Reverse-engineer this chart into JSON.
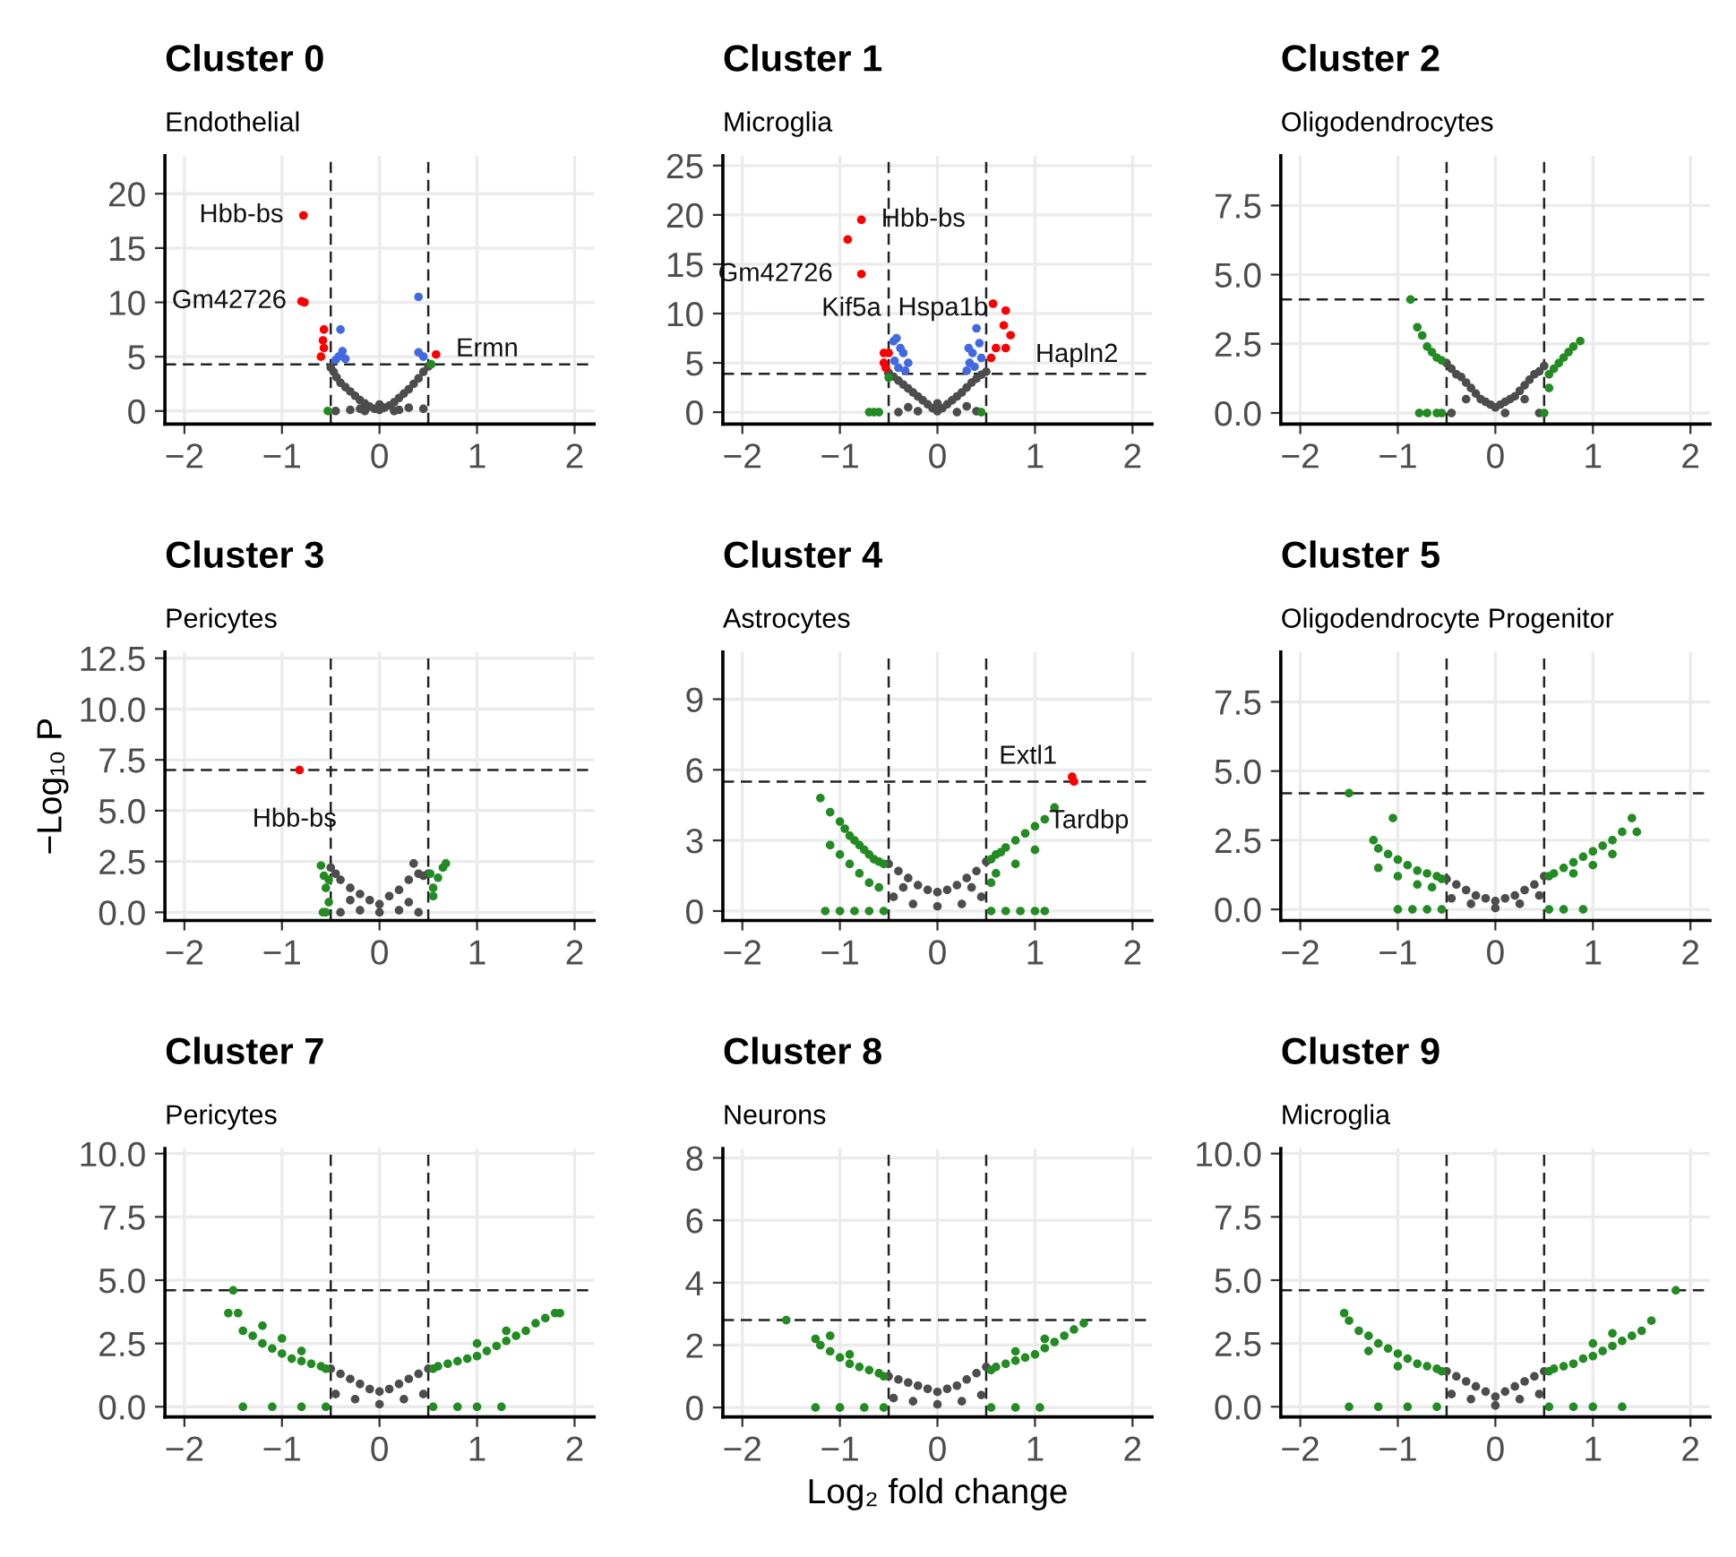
{
  "chart_data": [
    {
      "type": "scatter",
      "title": "Cluster 0",
      "subtitle": "Endothelial",
      "xlim": [
        -2.2,
        2.2
      ],
      "xticks": [
        -2,
        -1,
        0,
        1,
        2
      ],
      "ylim": [
        -1.2,
        23.5
      ],
      "yticks": [
        0,
        5,
        10,
        15,
        20
      ],
      "grid": true,
      "marker": "circle",
      "ref_lines": [
        {
          "axis": "x",
          "value": -0.5,
          "line_style": "dashed"
        },
        {
          "axis": "x",
          "value": 0.5,
          "line_style": "dashed"
        },
        {
          "axis": "y",
          "value": 4.3,
          "line_style": "dashed"
        }
      ],
      "annotations": [
        {
          "text": "Hbb-bs",
          "x": -0.78,
          "y": 18
        },
        {
          "text": "Gm42726",
          "x": -0.8,
          "y": 10.1
        },
        {
          "text": "Ermn",
          "x": 0.58,
          "y": 5.2
        }
      ],
      "series": [
        {
          "color": "#4d4d4d",
          "x": [
            -0.5,
            -0.47,
            -0.44,
            -0.4,
            -0.35,
            -0.3,
            -0.25,
            -0.2,
            -0.15,
            -0.1,
            -0.05,
            0,
            0.05,
            0.1,
            0.15,
            0.2,
            0.25,
            0.3,
            0.35,
            0.4,
            0.45,
            0.5,
            -0.45,
            -0.3,
            -0.15,
            0,
            0.15,
            0.3,
            0.45,
            -0.2,
            0.2
          ],
          "values": [
            4,
            3.6,
            3.1,
            2.6,
            2.2,
            1.8,
            1.4,
            1.0,
            0.7,
            0.4,
            0.2,
            0.1,
            0.3,
            0.5,
            0.8,
            1.2,
            1.6,
            2.0,
            2.5,
            3.0,
            3.6,
            4.1,
            0,
            0.1,
            0,
            0.6,
            0,
            0.3,
            0.2,
            0.2,
            0.1
          ]
        },
        {
          "color": "#228b22",
          "x": [
            -0.53,
            0.53
          ],
          "values": [
            0,
            4.3
          ]
        },
        {
          "color": "#4169e1",
          "x": [
            -0.4,
            -0.38,
            -0.35,
            -0.45,
            -0.42,
            0.4,
            0.4,
            0.45
          ],
          "values": [
            7.5,
            5.5,
            4.8,
            4.7,
            5.0,
            10.5,
            5.4,
            5.0
          ]
        },
        {
          "color": "#ff0000",
          "x": [
            -0.78,
            -0.8,
            -0.77,
            -0.57,
            -0.58,
            -0.57,
            -0.6,
            0.58
          ],
          "values": [
            18,
            10.1,
            10,
            7.5,
            6.5,
            5.8,
            5,
            5.2
          ]
        }
      ]
    },
    {
      "type": "scatter",
      "title": "Cluster 1",
      "subtitle": "Microglia",
      "xlim": [
        -2.2,
        2.2
      ],
      "xticks": [
        -2,
        -1,
        0,
        1,
        2
      ],
      "ylim": [
        -1.2,
        26
      ],
      "yticks": [
        0,
        5,
        10,
        15,
        20,
        25
      ],
      "grid": true,
      "marker": "circle",
      "ref_lines": [
        {
          "axis": "x",
          "value": -0.5,
          "line_style": "dashed"
        },
        {
          "axis": "x",
          "value": 0.5,
          "line_style": "dashed"
        },
        {
          "axis": "y",
          "value": 3.9,
          "line_style": "dashed"
        }
      ],
      "annotations": [
        {
          "text": "Hbb-bs",
          "x": -0.78,
          "y": 19.5
        },
        {
          "text": "Gm42726",
          "x": -0.92,
          "y": 17.5
        },
        {
          "text": "Kif5a",
          "x": -0.78,
          "y": 14
        },
        {
          "text": "Hspa1b",
          "x": 0.57,
          "y": 11
        },
        {
          "text": "Hapln2",
          "x": 0.75,
          "y": 7.8
        }
      ],
      "series": [
        {
          "color": "#4d4d4d",
          "x": [
            -0.5,
            -0.45,
            -0.4,
            -0.35,
            -0.3,
            -0.25,
            -0.2,
            -0.15,
            -0.1,
            -0.05,
            0,
            0.05,
            0.1,
            0.15,
            0.2,
            0.25,
            0.3,
            0.35,
            0.4,
            0.45,
            0.5,
            -0.4,
            -0.2,
            0,
            0.2,
            0.4,
            -0.3,
            0.3
          ],
          "values": [
            4,
            3.6,
            3.2,
            2.8,
            2.4,
            2,
            1.6,
            1.2,
            0.8,
            0.4,
            0.1,
            0.4,
            0.8,
            1.2,
            1.6,
            2,
            2.5,
            3,
            3.4,
            3.8,
            4.1,
            0,
            0.1,
            0.9,
            0,
            0.1,
            0.5,
            0.6
          ]
        },
        {
          "color": "#228b22",
          "x": [
            -0.65,
            -0.7,
            -0.6,
            -0.5,
            0.45
          ],
          "values": [
            0,
            0,
            0,
            3.5,
            0
          ]
        },
        {
          "color": "#4169e1",
          "x": [
            -0.45,
            -0.42,
            -0.38,
            -0.35,
            -0.3,
            -0.44,
            -0.4,
            -0.33,
            0.3,
            0.33,
            0.36,
            0.4,
            0.43,
            0.45,
            0.38,
            0.32
          ],
          "values": [
            7.2,
            7.5,
            6.5,
            6,
            5,
            5.2,
            4.5,
            4.2,
            4.2,
            5,
            6,
            8.5,
            7,
            5.5,
            4.6,
            6.5
          ]
        },
        {
          "color": "#ff0000",
          "x": [
            -0.78,
            -0.92,
            -0.78,
            -0.55,
            -0.5,
            -0.55,
            -0.53,
            0.57,
            0.7,
            0.68,
            0.75,
            0.6,
            0.7,
            0.55
          ],
          "values": [
            19.5,
            17.5,
            14,
            6,
            6,
            5,
            4.5,
            11,
            10.3,
            8.8,
            7.8,
            6.5,
            6.5,
            5.5
          ]
        }
      ]
    },
    {
      "type": "scatter",
      "title": "Cluster 2",
      "subtitle": "Oligodendrocytes",
      "xlim": [
        -2.2,
        2.2
      ],
      "xticks": [
        -2,
        -1,
        0,
        1,
        2
      ],
      "ylim": [
        -0.4,
        9.3
      ],
      "yticks": [
        {
          "value": 0,
          "label": "0.0"
        },
        2.5,
        {
          "value": 5,
          "label": "5.0"
        },
        7.5
      ],
      "grid": true,
      "marker": "circle",
      "ref_lines": [
        {
          "axis": "x",
          "value": -0.5,
          "line_style": "dashed"
        },
        {
          "axis": "x",
          "value": 0.5,
          "line_style": "dashed"
        },
        {
          "axis": "y",
          "value": 4.1,
          "line_style": "dashed"
        }
      ],
      "series": [
        {
          "color": "#4d4d4d",
          "x": [
            -0.5,
            -0.45,
            -0.4,
            -0.35,
            -0.3,
            -0.25,
            -0.2,
            -0.15,
            -0.1,
            -0.05,
            0,
            0.05,
            0.1,
            0.15,
            0.2,
            0.25,
            0.3,
            0.35,
            0.4,
            0.45,
            0.5,
            -0.45,
            0.45,
            0.1,
            -0.3,
            0.3
          ],
          "values": [
            1.8,
            1.6,
            1.4,
            1.3,
            1.1,
            0.9,
            0.7,
            0.5,
            0.4,
            0.3,
            0.2,
            0.3,
            0.4,
            0.5,
            0.6,
            0.8,
            1.0,
            1.2,
            1.4,
            1.5,
            1.7,
            0,
            0,
            0,
            0.5,
            0.5
          ]
        },
        {
          "color": "#228b22",
          "x": [
            -0.87,
            -0.8,
            -0.75,
            -0.7,
            -0.65,
            -0.6,
            -0.55,
            -0.78,
            -0.7,
            -0.6,
            -0.55,
            0.55,
            0.6,
            0.65,
            0.7,
            0.75,
            0.8,
            0.87,
            0.5,
            0.55
          ],
          "values": [
            4.1,
            3.1,
            2.8,
            2.4,
            2.2,
            2.0,
            1.9,
            0,
            0,
            0,
            0,
            1.4,
            1.6,
            1.8,
            2.0,
            2.2,
            2.4,
            2.6,
            0,
            0.9
          ]
        }
      ]
    },
    {
      "type": "scatter",
      "title": "Cluster 3",
      "subtitle": "Pericytes",
      "ylabel": "−Log₁₀ P",
      "xlim": [
        -2.2,
        2.2
      ],
      "xticks": [
        -2,
        -1,
        0,
        1,
        2
      ],
      "ylim": [
        -0.4,
        12.8
      ],
      "yticks": [
        {
          "value": 0,
          "label": "0.0"
        },
        2.5,
        {
          "value": 5,
          "label": "5.0"
        },
        7.5,
        {
          "value": 10,
          "label": "10.0"
        },
        12.5
      ],
      "grid": true,
      "marker": "circle",
      "ref_lines": [
        {
          "axis": "x",
          "value": -0.5,
          "line_style": "dashed"
        },
        {
          "axis": "x",
          "value": 0.5,
          "line_style": "dashed"
        },
        {
          "axis": "y",
          "value": 7.0,
          "line_style": "dashed"
        }
      ],
      "annotations": [
        {
          "text": "Hbb-bs",
          "x": -0.82,
          "y": 7.0
        }
      ],
      "series": [
        {
          "color": "#4d4d4d",
          "x": [
            -0.5,
            -0.45,
            -0.4,
            -0.3,
            -0.2,
            -0.1,
            0,
            0.1,
            0.2,
            0.3,
            0.35,
            0.4,
            0.45,
            0.5,
            -0.4,
            -0.2,
            0,
            0.2,
            0.4,
            -0.3,
            0.3
          ],
          "values": [
            2.2,
            1.9,
            1.6,
            1.2,
            0.9,
            0.6,
            0.4,
            0.8,
            1.1,
            1.6,
            2.4,
            1.9,
            1.8,
            1.9,
            0,
            0.1,
            0,
            0.1,
            0,
            0.6,
            0.5
          ]
        },
        {
          "color": "#228b22",
          "x": [
            -0.6,
            -0.57,
            -0.55,
            -0.52,
            -0.58,
            -0.55,
            -0.52,
            0.52,
            0.55,
            0.6,
            0.65,
            0.68,
            0.55
          ],
          "values": [
            2.3,
            1.8,
            1.2,
            0.5,
            0,
            0,
            1.6,
            1.9,
            0.8,
            1.7,
            2.2,
            2.4,
            1.2
          ]
        },
        {
          "color": "#ff0000",
          "x": [
            -0.82
          ],
          "values": [
            7.0
          ]
        }
      ]
    },
    {
      "type": "scatter",
      "title": "Cluster 4",
      "subtitle": "Astrocytes",
      "xlim": [
        -2.2,
        2.2
      ],
      "xticks": [
        -2,
        -1,
        0,
        1,
        2
      ],
      "ylim": [
        -0.4,
        11
      ],
      "yticks": [
        0,
        3,
        6,
        9
      ],
      "grid": true,
      "marker": "circle",
      "ref_lines": [
        {
          "axis": "x",
          "value": -0.5,
          "line_style": "dashed"
        },
        {
          "axis": "x",
          "value": 0.5,
          "line_style": "dashed"
        },
        {
          "axis": "y",
          "value": 5.5,
          "line_style": "dashed"
        }
      ],
      "annotations": [
        {
          "text": "Extl1",
          "x": 1.38,
          "y": 5.7
        },
        {
          "text": "Tardbp",
          "x": 1.4,
          "y": 5.5
        }
      ],
      "series": [
        {
          "color": "#4d4d4d",
          "x": [
            -0.5,
            -0.4,
            -0.3,
            -0.2,
            -0.1,
            0,
            0.1,
            0.2,
            0.3,
            0.4,
            0.5,
            -0.45,
            -0.25,
            0,
            0.25,
            0.45,
            -0.35,
            0.35
          ],
          "values": [
            2.0,
            1.7,
            1.4,
            1.1,
            0.9,
            0.8,
            0.9,
            1.1,
            1.4,
            1.7,
            2.1,
            0.6,
            0.3,
            0.2,
            0.3,
            0.6,
            1,
            1
          ]
        },
        {
          "color": "#228b22",
          "x": [
            -1.2,
            -1.1,
            -1.0,
            -0.95,
            -0.9,
            -0.85,
            -0.8,
            -0.75,
            -0.7,
            -0.65,
            -0.6,
            -0.55,
            -1.1,
            -1.0,
            -0.9,
            -0.8,
            -0.7,
            -0.6,
            -1.15,
            -1.0,
            -0.85,
            -0.7,
            -0.55,
            0.55,
            0.6,
            0.65,
            0.7,
            0.8,
            0.9,
            1.0,
            1.1,
            1.2,
            0.6,
            0.8,
            1.0,
            0.55,
            0.7,
            0.85,
            1.0,
            1.1,
            0.55
          ],
          "values": [
            4.8,
            4.2,
            3.8,
            3.5,
            3.2,
            3.0,
            2.8,
            2.6,
            2.4,
            2.2,
            2.1,
            2.0,
            2.8,
            2.4,
            2.0,
            1.6,
            1.2,
            1.0,
            0,
            0,
            0,
            0,
            0,
            2.2,
            2.4,
            2.5,
            2.7,
            3.0,
            3.3,
            3.6,
            3.9,
            4.4,
            1.6,
            2.0,
            2.6,
            0,
            0,
            0,
            0,
            0,
            1.2
          ]
        },
        {
          "color": "#ff0000",
          "x": [
            1.38,
            1.4
          ],
          "values": [
            5.7,
            5.5
          ]
        }
      ]
    },
    {
      "type": "scatter",
      "title": "Cluster 5",
      "subtitle": "Oligodendrocyte Progenitor",
      "xlim": [
        -2.2,
        2.2
      ],
      "xticks": [
        -2,
        -1,
        0,
        1,
        2
      ],
      "ylim": [
        -0.4,
        9.3
      ],
      "yticks": [
        {
          "value": 0,
          "label": "0.0"
        },
        2.5,
        {
          "value": 5,
          "label": "5.0"
        },
        7.5
      ],
      "grid": true,
      "marker": "circle",
      "ref_lines": [
        {
          "axis": "x",
          "value": -0.5,
          "line_style": "dashed"
        },
        {
          "axis": "x",
          "value": 0.5,
          "line_style": "dashed"
        },
        {
          "axis": "y",
          "value": 4.2,
          "line_style": "dashed"
        }
      ],
      "series": [
        {
          "color": "#4d4d4d",
          "x": [
            -0.5,
            -0.4,
            -0.3,
            -0.2,
            -0.1,
            0,
            0.1,
            0.2,
            0.3,
            0.4,
            0.5,
            -0.45,
            -0.25,
            0,
            0.25,
            0.45
          ],
          "values": [
            1.1,
            0.9,
            0.7,
            0.5,
            0.4,
            0.3,
            0.4,
            0.5,
            0.7,
            0.9,
            1.2,
            0.4,
            0.2,
            0.05,
            0.2,
            0.5
          ]
        },
        {
          "color": "#228b22",
          "x": [
            -1.5,
            -1.25,
            -1.2,
            -1.1,
            -1.05,
            -1.0,
            -0.9,
            -0.8,
            -0.7,
            -0.6,
            -0.55,
            -1.2,
            -1.0,
            -0.8,
            -0.65,
            -1.0,
            -0.85,
            -0.7,
            -0.55,
            0.55,
            0.6,
            0.7,
            0.8,
            0.9,
            1.0,
            1.1,
            1.2,
            1.3,
            1.4,
            1.45,
            0.8,
            1.0,
            1.2,
            0.55,
            0.7,
            0.9
          ],
          "values": [
            4.2,
            2.5,
            2.2,
            2.0,
            3.3,
            1.8,
            1.6,
            1.4,
            1.3,
            1.2,
            1.1,
            1.5,
            1.2,
            0.9,
            0.8,
            0,
            0,
            0,
            0,
            1.2,
            1.3,
            1.5,
            1.7,
            1.9,
            2.1,
            2.3,
            2.5,
            2.8,
            3.3,
            2.8,
            1.3,
            1.6,
            2.0,
            0,
            0,
            0
          ]
        }
      ]
    },
    {
      "type": "scatter",
      "title": "Cluster 7",
      "subtitle": "Pericytes",
      "xlim": [
        -2.2,
        2.2
      ],
      "xticks": [
        -2,
        -1,
        0,
        1,
        2
      ],
      "ylim": [
        -0.4,
        10.2
      ],
      "yticks": [
        {
          "value": 0,
          "label": "0.0"
        },
        2.5,
        {
          "value": 5,
          "label": "5.0"
        },
        7.5,
        {
          "value": 10,
          "label": "10.0"
        }
      ],
      "grid": true,
      "marker": "circle",
      "ref_lines": [
        {
          "axis": "x",
          "value": -0.5,
          "line_style": "dashed"
        },
        {
          "axis": "x",
          "value": 0.5,
          "line_style": "dashed"
        },
        {
          "axis": "y",
          "value": 4.6,
          "line_style": "dashed"
        }
      ],
      "series": [
        {
          "color": "#4d4d4d",
          "x": [
            -0.5,
            -0.4,
            -0.3,
            -0.2,
            -0.1,
            0,
            0.1,
            0.2,
            0.3,
            0.4,
            0.5,
            -0.45,
            -0.25,
            0,
            0.25,
            0.45
          ],
          "values": [
            1.5,
            1.3,
            1.1,
            0.9,
            0.7,
            0.6,
            0.7,
            0.9,
            1.1,
            1.3,
            1.5,
            0.5,
            0.3,
            0.1,
            0.3,
            0.5
          ],
          "name": null
        },
        {
          "color": "#228b22",
          "x": [
            -1.5,
            -1.55,
            -1.45,
            -1.4,
            -1.3,
            -1.2,
            -1.1,
            -1.0,
            -0.9,
            -0.8,
            -0.7,
            -0.6,
            -0.55,
            -1.2,
            -1.0,
            -0.8,
            -1.4,
            -1.1,
            -0.8,
            -0.55,
            0.55,
            0.6,
            0.7,
            0.8,
            0.9,
            1.0,
            1.1,
            1.2,
            1.3,
            1.4,
            1.5,
            1.6,
            1.7,
            1.8,
            1.85,
            1.0,
            1.3,
            0.55,
            0.8,
            1.0,
            1.25
          ],
          "values": [
            4.6,
            3.7,
            3.7,
            3.0,
            2.8,
            2.5,
            2.3,
            2.1,
            1.9,
            1.8,
            1.7,
            1.6,
            1.5,
            3.2,
            2.7,
            2.2,
            0,
            0,
            0,
            0,
            1.5,
            1.6,
            1.7,
            1.8,
            1.9,
            2.0,
            2.2,
            2.4,
            2.6,
            2.8,
            3.0,
            3.3,
            3.5,
            3.7,
            3.7,
            2.5,
            3.0,
            0,
            0,
            0,
            0
          ]
        }
      ]
    },
    {
      "type": "scatter",
      "title": "Cluster 8",
      "subtitle": "Neurons",
      "xlabel": "Log₂ fold change",
      "xlim": [
        -2.2,
        2.2
      ],
      "xticks": [
        -2,
        -1,
        0,
        1,
        2
      ],
      "ylim": [
        -0.3,
        8.3
      ],
      "yticks": [
        0,
        2,
        4,
        6,
        8
      ],
      "grid": true,
      "marker": "circle",
      "ref_lines": [
        {
          "axis": "x",
          "value": -0.5,
          "line_style": "dashed"
        },
        {
          "axis": "x",
          "value": 0.5,
          "line_style": "dashed"
        },
        {
          "axis": "y",
          "value": 2.8,
          "line_style": "dashed"
        }
      ],
      "series": [
        {
          "color": "#4d4d4d",
          "x": [
            -0.5,
            -0.4,
            -0.3,
            -0.2,
            -0.1,
            0,
            0.1,
            0.2,
            0.3,
            0.4,
            0.5,
            -0.45,
            -0.25,
            0,
            0.25,
            0.45
          ],
          "values": [
            1.0,
            0.9,
            0.8,
            0.7,
            0.6,
            0.5,
            0.6,
            0.7,
            0.9,
            1.1,
            1.3,
            0.3,
            0.2,
            0.1,
            0.2,
            0.4
          ]
        },
        {
          "color": "#228b22",
          "x": [
            -1.55,
            -1.25,
            -1.2,
            -1.1,
            -1.0,
            -0.9,
            -0.8,
            -0.7,
            -0.6,
            -0.55,
            -1.1,
            -0.9,
            -1.25,
            -1.0,
            -0.75,
            -0.55,
            0.55,
            0.6,
            0.7,
            0.8,
            0.9,
            1.0,
            1.1,
            1.2,
            1.3,
            1.4,
            1.5,
            0.8,
            1.1,
            0.55,
            0.8,
            1.05
          ],
          "values": [
            2.8,
            2.2,
            2.0,
            1.8,
            1.6,
            1.4,
            1.3,
            1.2,
            1.1,
            1.0,
            2.3,
            1.7,
            0,
            0,
            0,
            0,
            1.2,
            1.3,
            1.4,
            1.5,
            1.6,
            1.7,
            1.9,
            2.1,
            2.3,
            2.5,
            2.7,
            1.8,
            2.2,
            0,
            0,
            0
          ]
        }
      ]
    },
    {
      "type": "scatter",
      "title": "Cluster 9",
      "subtitle": "Microglia",
      "xlim": [
        -2.2,
        2.2
      ],
      "xticks": [
        -2,
        -1,
        0,
        1,
        2
      ],
      "ylim": [
        -0.4,
        10.2
      ],
      "yticks": [
        {
          "value": 0,
          "label": "0.0"
        },
        2.5,
        {
          "value": 5,
          "label": "5.0"
        },
        7.5,
        {
          "value": 10,
          "label": "10.0"
        }
      ],
      "grid": true,
      "marker": "circle",
      "ref_lines": [
        {
          "axis": "x",
          "value": -0.5,
          "line_style": "dashed"
        },
        {
          "axis": "x",
          "value": 0.5,
          "line_style": "dashed"
        },
        {
          "axis": "y",
          "value": 4.6,
          "line_style": "dashed"
        }
      ],
      "series": [
        {
          "color": "#4d4d4d",
          "x": [
            -0.5,
            -0.4,
            -0.3,
            -0.2,
            -0.1,
            0,
            0.1,
            0.2,
            0.3,
            0.4,
            0.5,
            -0.45,
            -0.25,
            0,
            0.25,
            0.45
          ],
          "values": [
            1.4,
            1.2,
            1.0,
            0.8,
            0.6,
            0.4,
            0.6,
            0.8,
            1.0,
            1.2,
            1.4,
            0.5,
            0.3,
            0.05,
            0.3,
            0.5
          ]
        },
        {
          "color": "#228b22",
          "x": [
            -1.55,
            -1.5,
            -1.4,
            -1.3,
            -1.2,
            -1.1,
            -1.0,
            -0.9,
            -0.8,
            -0.7,
            -0.6,
            -0.55,
            -1.3,
            -1.0,
            -1.5,
            -1.2,
            -0.9,
            -0.6,
            1.85,
            1.6,
            1.5,
            1.4,
            1.3,
            1.2,
            1.1,
            1.0,
            0.9,
            0.8,
            0.7,
            0.6,
            0.55,
            1.2,
            1.0,
            0.55,
            0.8,
            1.0,
            1.3
          ],
          "values": [
            3.7,
            3.4,
            3.0,
            2.8,
            2.5,
            2.3,
            2.1,
            1.9,
            1.7,
            1.6,
            1.5,
            1.4,
            2.2,
            1.6,
            0,
            0,
            0,
            0,
            4.6,
            3.4,
            3.0,
            2.8,
            2.6,
            2.4,
            2.2,
            2.0,
            1.9,
            1.7,
            1.6,
            1.5,
            1.4,
            2.9,
            2.5,
            0,
            0,
            0,
            0
          ]
        }
      ]
    }
  ]
}
